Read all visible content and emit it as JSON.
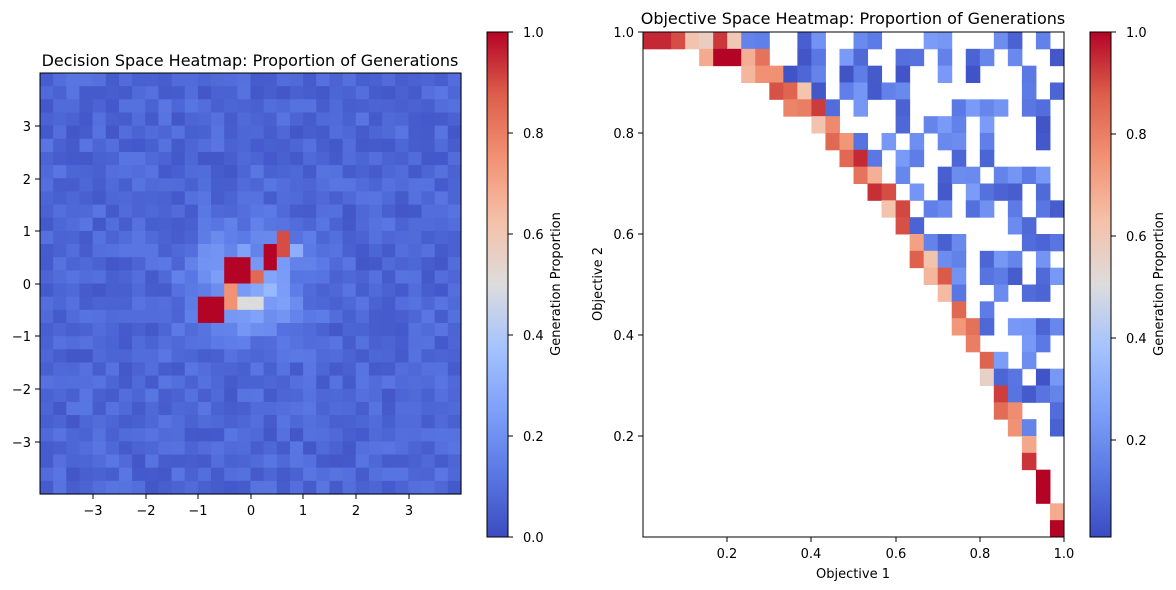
{
  "chart_data": [
    {
      "type": "heatmap",
      "title": "Decision Space Heatmap: Proportion of Generations",
      "xlabel": "",
      "ylabel": "",
      "xlim": [
        -4,
        4
      ],
      "ylim": [
        -4,
        4
      ],
      "xticks": [
        "−3",
        "−2",
        "−1",
        "0",
        "1",
        "2",
        "3"
      ],
      "yticks": [
        "−3",
        "−2",
        "−1",
        "0",
        "1",
        "2",
        "3"
      ],
      "colorbar": {
        "label": "Generation Proportion",
        "range": [
          0,
          1
        ],
        "ticks": [
          "0.0",
          "0.2",
          "0.4",
          "0.6",
          "0.8",
          "1.0"
        ]
      },
      "colormap": "coolwarm",
      "grid": false,
      "hot_cells": [
        {
          "x": -0.75,
          "y": -0.5,
          "value": 1.0
        },
        {
          "x": -0.25,
          "y": 0.25,
          "value": 1.0
        },
        {
          "x": 0.4,
          "y": 0.5,
          "value": 1.0
        },
        {
          "x": 0.6,
          "y": 0.7,
          "value": 0.9
        },
        {
          "x": 0.1,
          "y": 0.1,
          "value": 0.85
        },
        {
          "x": -0.4,
          "y": -0.2,
          "value": 0.75
        },
        {
          "x": 0.0,
          "y": -0.35,
          "value": 0.5
        },
        {
          "x": 0.9,
          "y": 0.6,
          "value": 0.3
        }
      ]
    },
    {
      "type": "heatmap",
      "title": "Objective Space Heatmap: Proportion of Generations",
      "xlabel": "Objective 1",
      "ylabel": "Objective 2",
      "xlim": [
        0,
        1
      ],
      "ylim": [
        0,
        1
      ],
      "xticks": [
        "0.2",
        "0.4",
        "0.6",
        "0.8",
        "1.0"
      ],
      "yticks": [
        "0.2",
        "0.4",
        "0.6",
        "0.8",
        "1.0"
      ],
      "colorbar": {
        "label": "Generation Proportion",
        "range": [
          0,
          1
        ],
        "ticks": [
          "0.2",
          "0.4",
          "0.6",
          "0.8",
          "1.0"
        ]
      },
      "colormap": "coolwarm",
      "grid": false,
      "front": [
        {
          "x": 0.02,
          "y": 0.98,
          "value": 0.95
        },
        {
          "x": 0.07,
          "y": 0.95,
          "value": 0.9
        },
        {
          "x": 0.2,
          "y": 0.92,
          "value": 1.0
        },
        {
          "x": 0.3,
          "y": 0.88,
          "value": 0.8
        },
        {
          "x": 0.45,
          "y": 0.76,
          "value": 0.85
        },
        {
          "x": 0.58,
          "y": 0.69,
          "value": 0.9
        },
        {
          "x": 0.67,
          "y": 0.62,
          "value": 1.0
        },
        {
          "x": 0.75,
          "y": 0.51,
          "value": 0.8
        },
        {
          "x": 0.85,
          "y": 0.4,
          "value": 0.75
        },
        {
          "x": 0.92,
          "y": 0.25,
          "value": 0.7
        },
        {
          "x": 0.95,
          "y": 0.08,
          "value": 1.0
        },
        {
          "x": 0.95,
          "y": 0.02,
          "value": 1.0
        }
      ]
    }
  ]
}
